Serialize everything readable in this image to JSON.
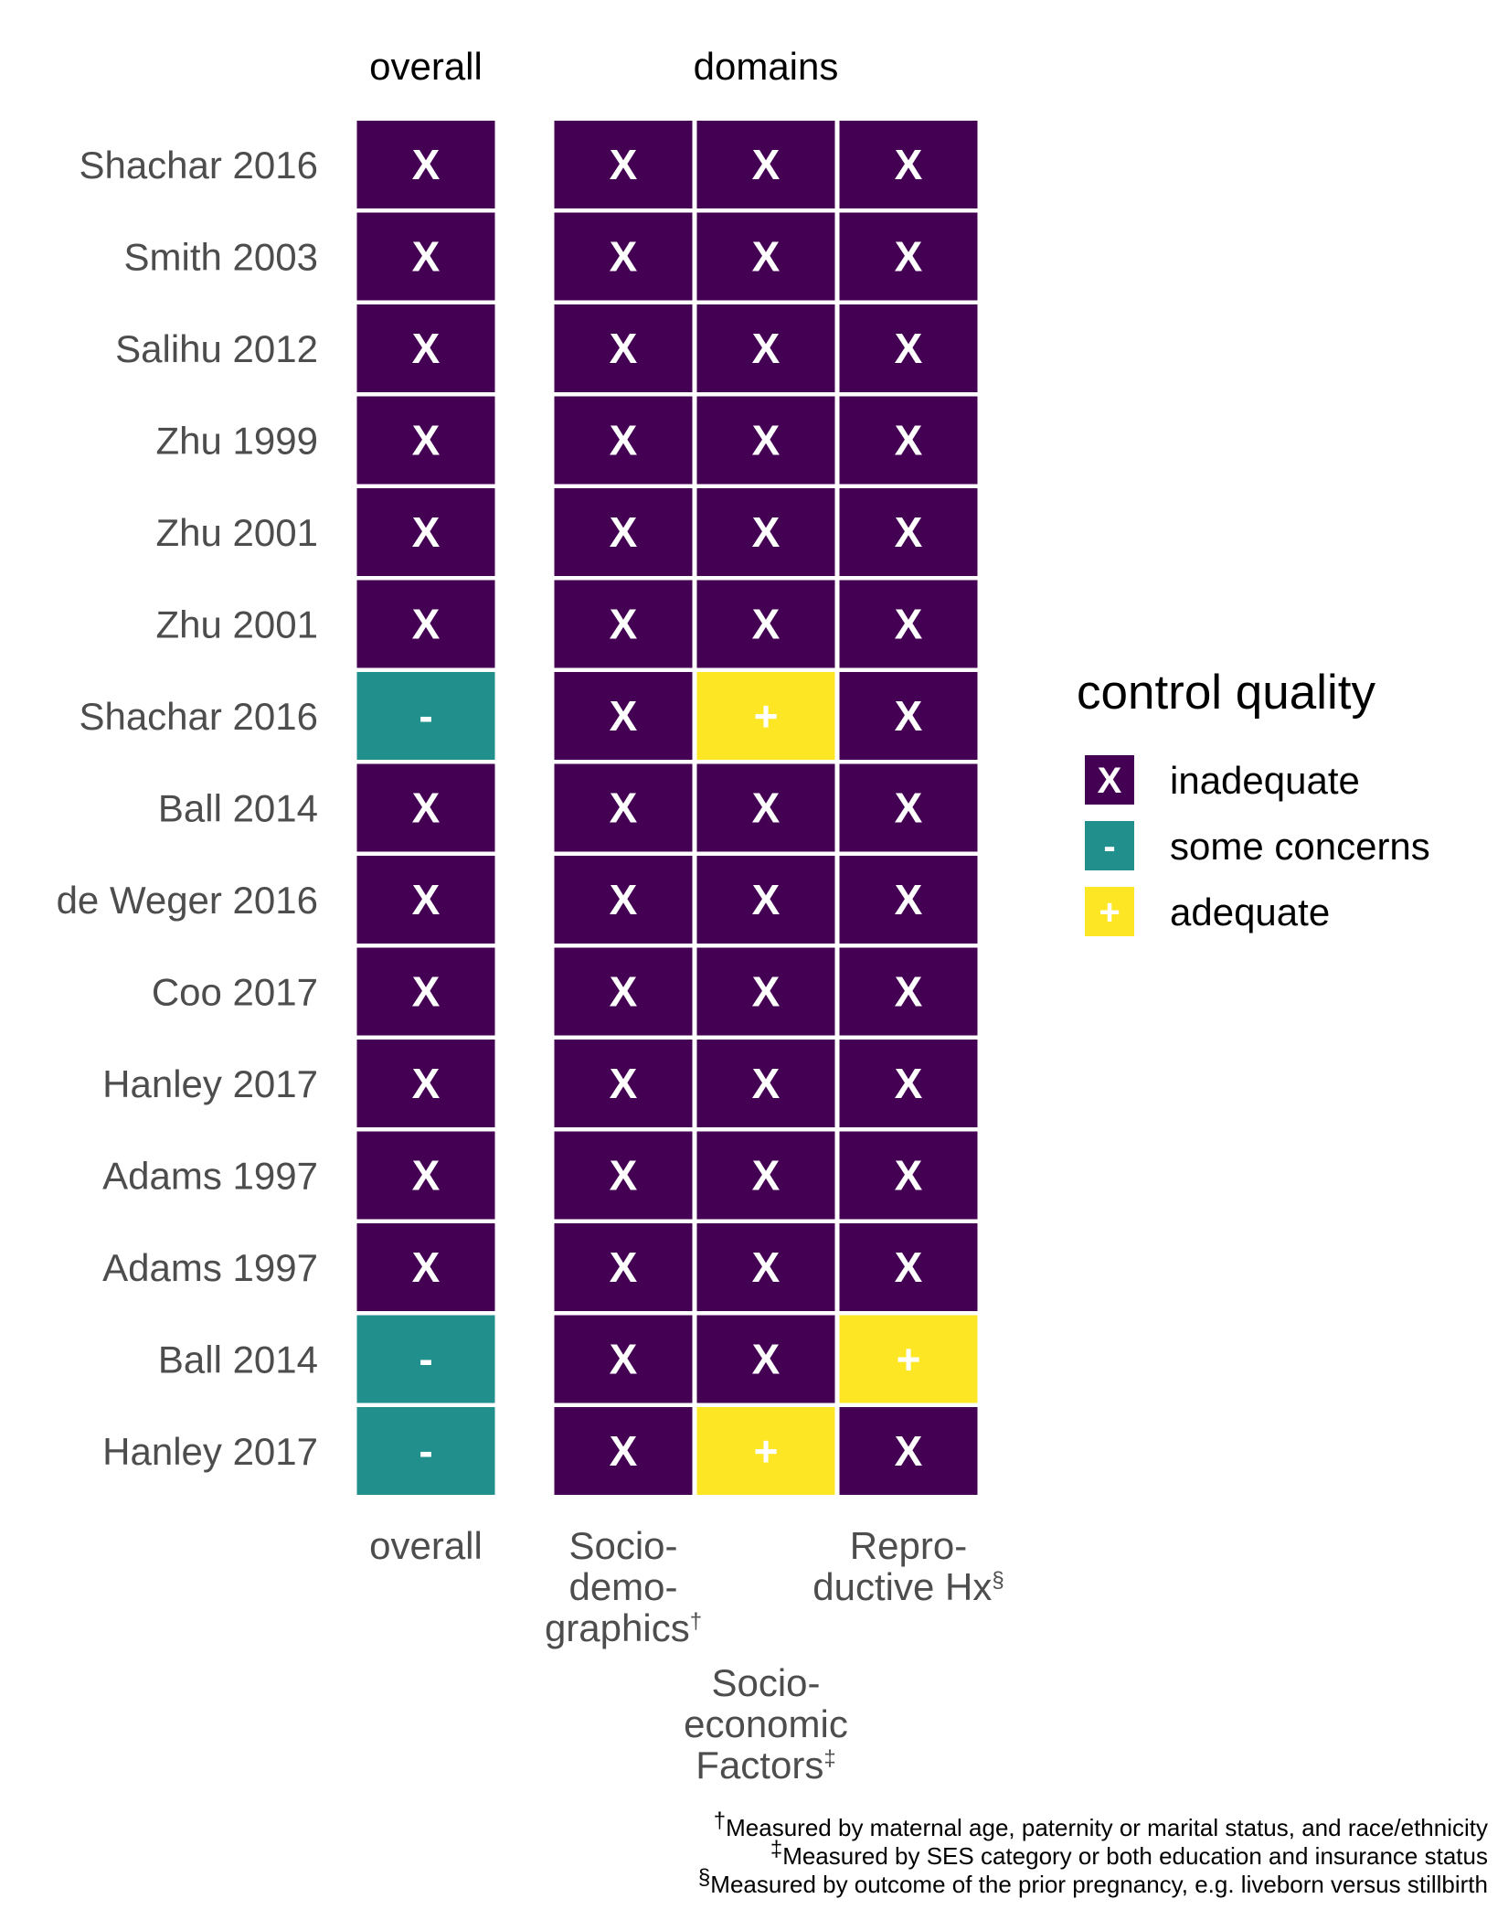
{
  "chart_data": {
    "type": "heatmap",
    "facets": [
      "overall",
      "domains"
    ],
    "columns": [
      {
        "key": "overall",
        "facet": "overall",
        "label_lines": [
          "overall"
        ],
        "mark": ""
      },
      {
        "key": "sociodemographics",
        "facet": "domains",
        "label_lines": [
          "Socio-",
          "demo-",
          "graphics"
        ],
        "mark": "†"
      },
      {
        "key": "socioeconomic",
        "facet": "domains",
        "label_lines": [
          "Socio-",
          "economic",
          "Factors"
        ],
        "mark": "‡"
      },
      {
        "key": "reproductive",
        "facet": "domains",
        "label_lines": [
          "Repro-",
          "ductive Hx"
        ],
        "mark": "§"
      }
    ],
    "rows": [
      {
        "study": "Shachar 2016",
        "values": [
          "inadequate",
          "inadequate",
          "inadequate",
          "inadequate"
        ]
      },
      {
        "study": "Smith 2003",
        "values": [
          "inadequate",
          "inadequate",
          "inadequate",
          "inadequate"
        ]
      },
      {
        "study": "Salihu 2012",
        "values": [
          "inadequate",
          "inadequate",
          "inadequate",
          "inadequate"
        ]
      },
      {
        "study": "Zhu 1999",
        "values": [
          "inadequate",
          "inadequate",
          "inadequate",
          "inadequate"
        ]
      },
      {
        "study": "Zhu 2001",
        "values": [
          "inadequate",
          "inadequate",
          "inadequate",
          "inadequate"
        ]
      },
      {
        "study": "Zhu 2001",
        "values": [
          "inadequate",
          "inadequate",
          "inadequate",
          "inadequate"
        ]
      },
      {
        "study": "Shachar 2016",
        "values": [
          "some concerns",
          "inadequate",
          "adequate",
          "inadequate"
        ]
      },
      {
        "study": "Ball 2014",
        "values": [
          "inadequate",
          "inadequate",
          "inadequate",
          "inadequate"
        ]
      },
      {
        "study": "de Weger 2016",
        "values": [
          "inadequate",
          "inadequate",
          "inadequate",
          "inadequate"
        ]
      },
      {
        "study": "Coo 2017",
        "values": [
          "inadequate",
          "inadequate",
          "inadequate",
          "inadequate"
        ]
      },
      {
        "study": "Hanley 2017",
        "values": [
          "inadequate",
          "inadequate",
          "inadequate",
          "inadequate"
        ]
      },
      {
        "study": "Adams 1997",
        "values": [
          "inadequate",
          "inadequate",
          "inadequate",
          "inadequate"
        ]
      },
      {
        "study": "Adams 1997",
        "values": [
          "inadequate",
          "inadequate",
          "inadequate",
          "inadequate"
        ]
      },
      {
        "study": "Ball 2014",
        "values": [
          "some concerns",
          "inadequate",
          "inadequate",
          "adequate"
        ]
      },
      {
        "study": "Hanley 2017",
        "values": [
          "some concerns",
          "inadequate",
          "adequate",
          "inadequate"
        ]
      }
    ],
    "legend": {
      "title": "control quality",
      "position": "right",
      "levels": [
        {
          "key": "inadequate",
          "label": "inadequate",
          "symbol": "X",
          "color": "#440154"
        },
        {
          "key": "some concerns",
          "label": "some concerns",
          "symbol": "-",
          "color": "#21908C"
        },
        {
          "key": "adequate",
          "label": "adequate",
          "symbol": "+",
          "color": "#FDE725"
        }
      ]
    },
    "footnotes": [
      {
        "mark": "†",
        "text": "Measured by maternal age, paternity or marital status, and race/ethnicity"
      },
      {
        "mark": "‡",
        "text": "Measured by SES category or both education and insurance status"
      },
      {
        "mark": "§",
        "text": "Measured by outcome of the prior pregnancy, e.g. liveborn versus stillbirth"
      }
    ]
  }
}
